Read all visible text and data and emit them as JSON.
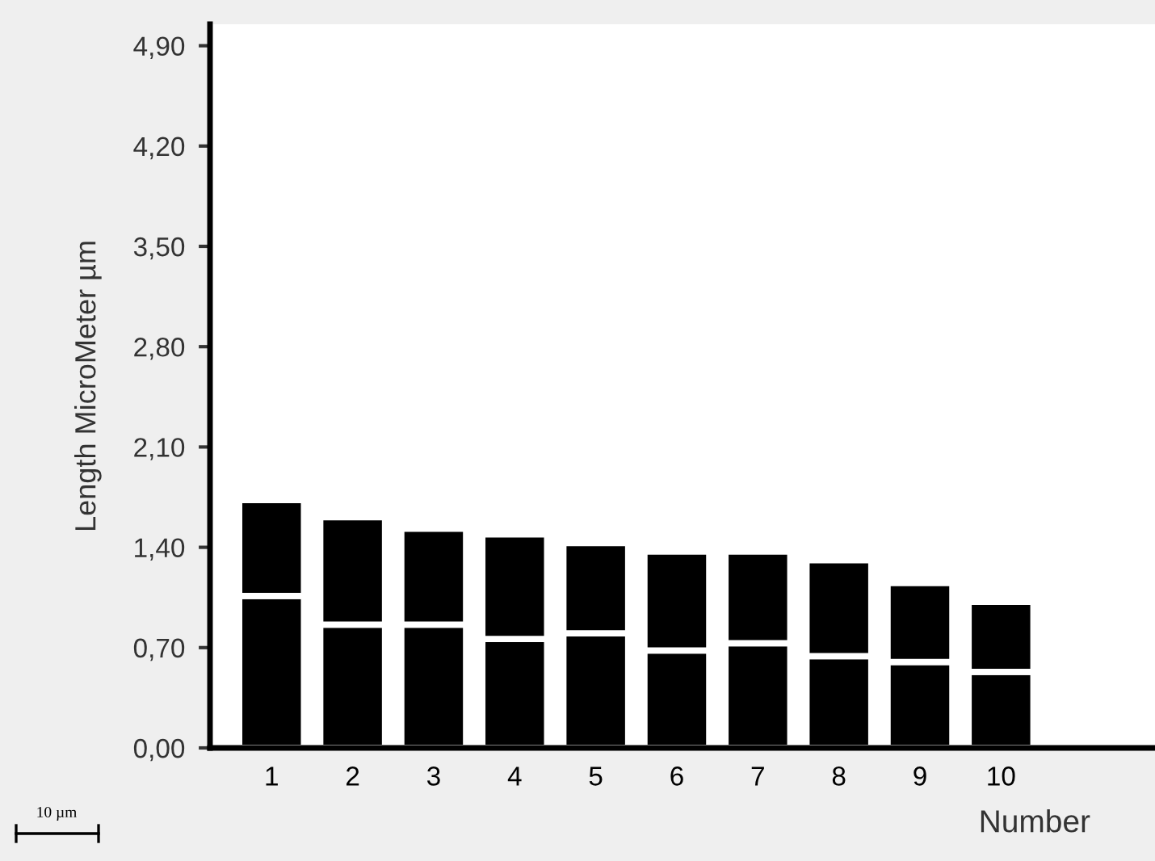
{
  "chart_data": {
    "type": "bar",
    "xlabel": "Number",
    "ylabel": "Length MicroMeter µm",
    "categories": [
      "1",
      "2",
      "3",
      "4",
      "5",
      "6",
      "7",
      "8",
      "9",
      "10"
    ],
    "stacked": true,
    "series": [
      {
        "color": "#000000",
        "values": [
          1.06,
          0.86,
          0.86,
          0.76,
          0.8,
          0.68,
          0.73,
          0.64,
          0.6,
          0.53
        ]
      },
      {
        "color": "#000000",
        "values": [
          0.67,
          0.75,
          0.67,
          0.73,
          0.63,
          0.69,
          0.64,
          0.67,
          0.55,
          0.49
        ]
      }
    ],
    "ylim": [
      0,
      5.05
    ],
    "yticks": [
      {
        "value": 0,
        "label": "0,00"
      },
      {
        "value": 0.7,
        "label": "0,70"
      },
      {
        "value": 1.4,
        "label": "1,40"
      },
      {
        "value": 2.1,
        "label": "2,10"
      },
      {
        "value": 2.8,
        "label": "2,80"
      },
      {
        "value": 3.5,
        "label": "3,50"
      },
      {
        "value": 4.2,
        "label": "4,20"
      },
      {
        "value": 4.9,
        "label": "4,90"
      }
    ],
    "grid": false,
    "legend": false,
    "annotations": [
      "10 µm"
    ]
  }
}
